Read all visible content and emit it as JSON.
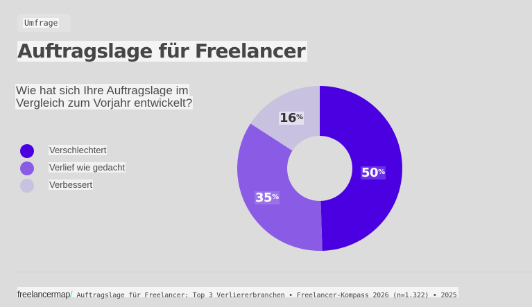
{
  "header": {
    "badge": "Umfrage",
    "title": "Auftragslage für Freelancer"
  },
  "question": {
    "line1": "Wie hat sich Ihre Auftragslage im",
    "line2": "Vergleich zum Vorjahr entwickelt?"
  },
  "legend": {
    "items": [
      {
        "label": "Verschlechtert",
        "color": "#4a00e0"
      },
      {
        "label": "Verlief wie gedacht",
        "color": "#8a5ce6"
      },
      {
        "label": "Verbessert",
        "color": "#c8c2e0"
      }
    ]
  },
  "labels": {
    "seg0_value": "50",
    "seg1_value": "35",
    "seg2_value": "16",
    "percent": "%"
  },
  "footer": {
    "logo": "freelancermap",
    "logo_slash": "/",
    "text": "Auftragslage für Freelancer: Top 3 Verliererbranchen • Freelancer-Kompass 2026 (n=1.322) • 2025"
  },
  "chart_data": {
    "type": "pie",
    "variant": "donut",
    "title": "Auftragslage für Freelancer",
    "subtitle": "Wie hat sich Ihre Auftragslage im Vergleich zum Vorjahr entwickelt?",
    "categories": [
      "Verschlechtert",
      "Verlief wie gedacht",
      "Verbessert"
    ],
    "values": [
      50,
      35,
      16
    ],
    "unit": "%",
    "colors": [
      "#4a00e0",
      "#8a5ce6",
      "#c8c2e0"
    ],
    "legend_position": "left",
    "start_angle": "top, clockwise"
  }
}
